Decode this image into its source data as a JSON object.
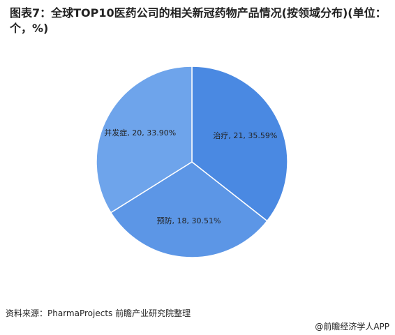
{
  "chart_data": {
    "type": "pie",
    "title": "图表7：全球TOP10医药公司的相关新冠药物产品情况(按领域分布)(单位：个，%)",
    "categories": [
      "治疗",
      "预防",
      "并发症"
    ],
    "values": [
      21,
      18,
      20
    ],
    "value_labels": [
      "治疗, 21, 35.59%",
      "预防, 18, 30.51%",
      "并发症, 20, 33.90%"
    ],
    "colors": [
      "#4a89e2",
      "#5c96e6",
      "#6ea4eb"
    ],
    "source": "资料来源：PharmaProjects 前瞻产业研究院整理",
    "credit": "@前瞻经济学人APP"
  }
}
